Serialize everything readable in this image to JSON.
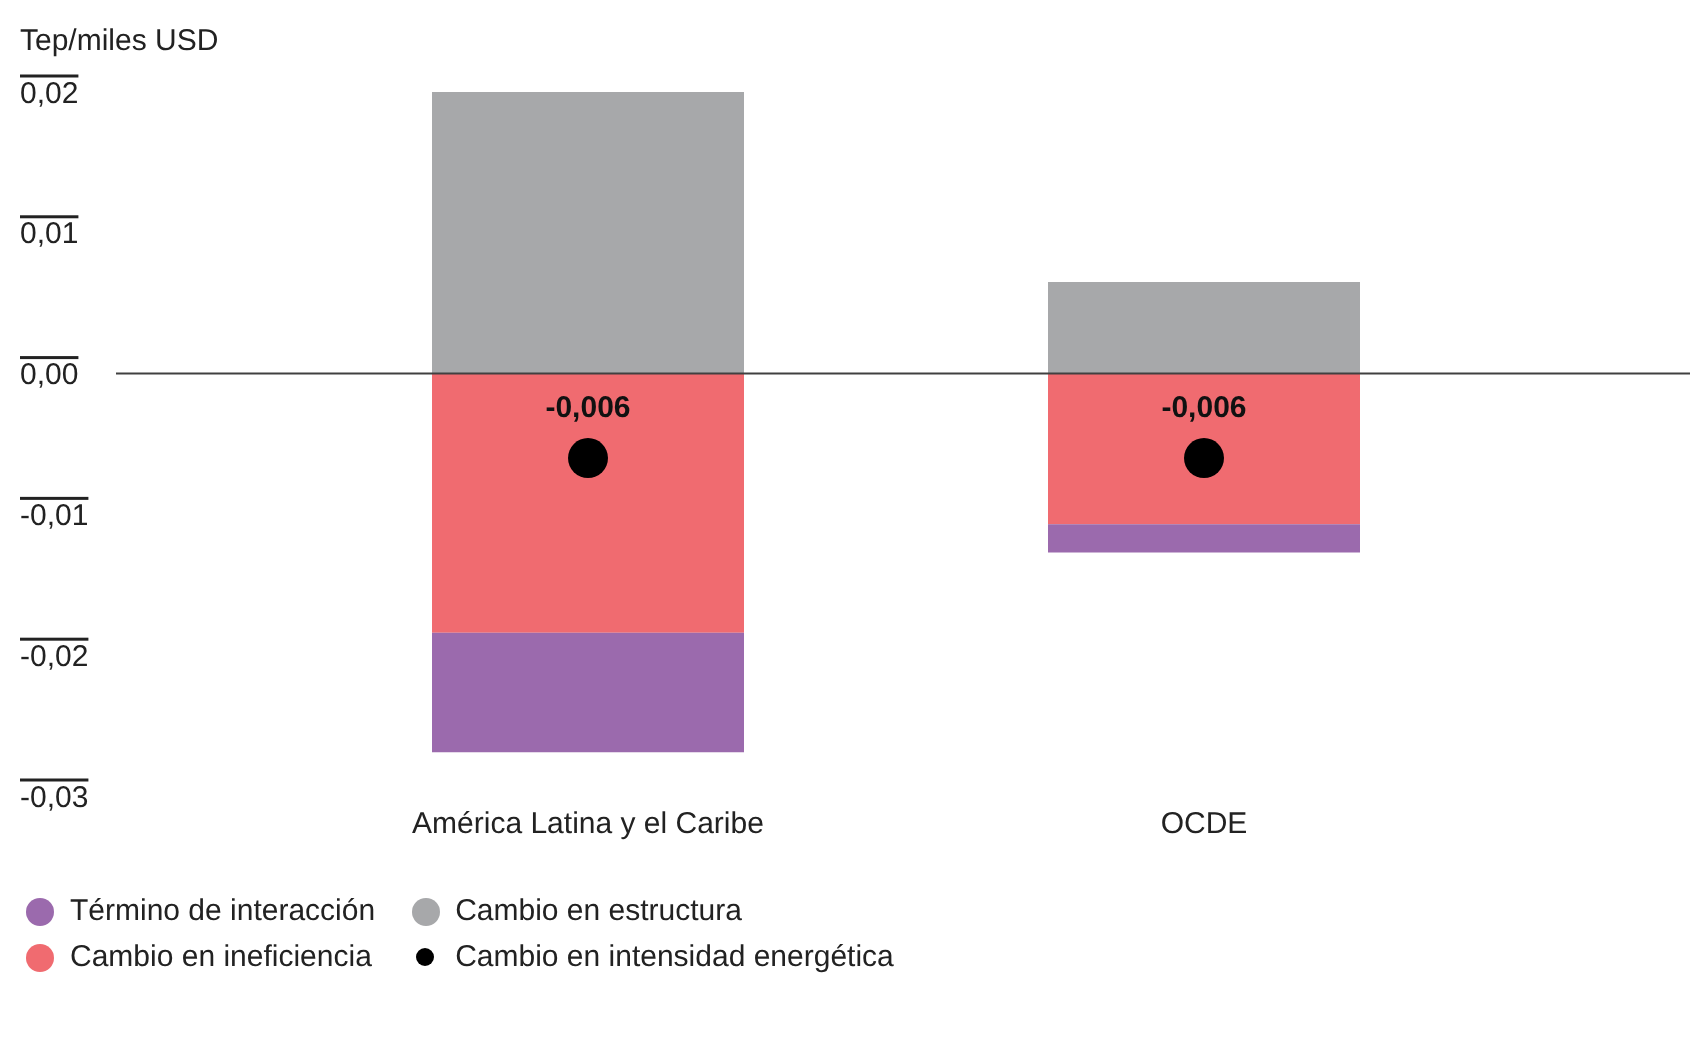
{
  "chart_data": {
    "type": "bar",
    "ylabel": "Tep/miles USD",
    "categories": [
      "América Latina y el Caribe",
      "OCDE"
    ],
    "stacked": true,
    "series": [
      {
        "name": "Cambio en estructura",
        "color": "#a7a8aa",
        "values": [
          0.02,
          0.0065
        ]
      },
      {
        "name": "Cambio en ineficiencia",
        "color": "#f06b70",
        "values": [
          -0.0184,
          -0.0107
        ]
      },
      {
        "name": "Término de interacción",
        "color": "#9b6aad",
        "values": [
          -0.0085,
          -0.002
        ]
      },
      {
        "name": "Cambio en intensidad energética",
        "type": "scatter",
        "color": "#000000",
        "values": [
          -0.006,
          -0.006
        ],
        "value_labels": [
          "-0,006",
          "-0,006"
        ]
      }
    ],
    "ylim": [
      -0.03,
      0.02
    ],
    "yticks": [
      {
        "value": 0.02,
        "label": "0,02"
      },
      {
        "value": 0.01,
        "label": "0,01"
      },
      {
        "value": 0,
        "label": "0,00"
      },
      {
        "value": -0.01,
        "label": "-0,01"
      },
      {
        "value": -0.02,
        "label": "-0,02"
      },
      {
        "value": -0.03,
        "label": "-0,03"
      }
    ],
    "ref_lines": [
      {
        "axis": "y",
        "value": 0,
        "color": "#404040"
      }
    ],
    "legend": "bottom left",
    "grid": false
  }
}
